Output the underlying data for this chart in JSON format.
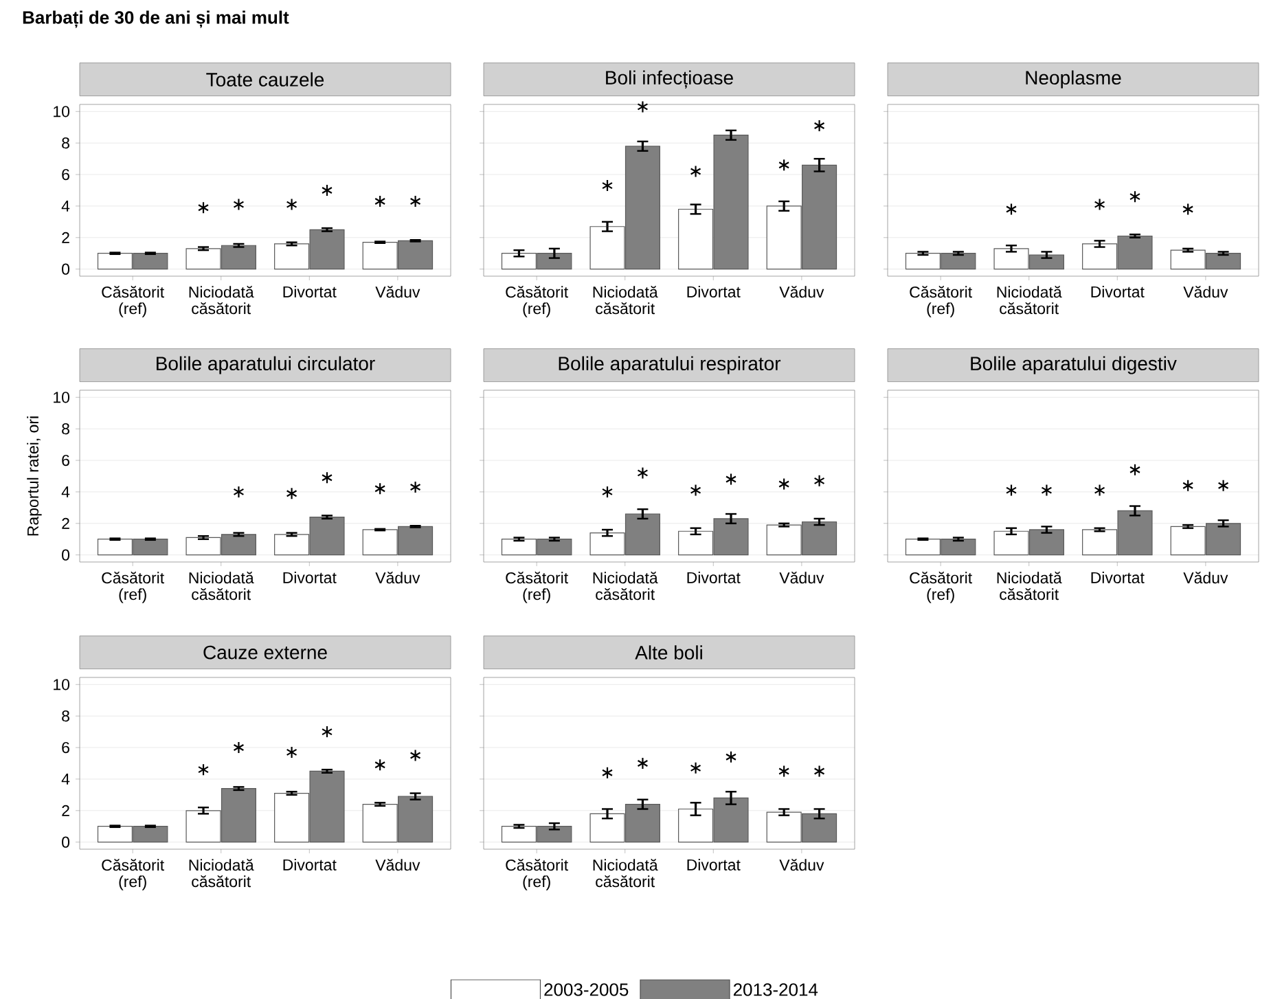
{
  "chart_data": [
    {
      "type": "bar",
      "title": "Toate cauzele",
      "annotations": [
        "Barbați de 30 de ani și mai mult"
      ],
      "categories": [
        "Căsătorit (ref)",
        "Niciodată căsătorit",
        "Divortat",
        "Văduv"
      ],
      "ylim": [
        -0.45,
        10.45
      ],
      "yticks": [
        0,
        2,
        4,
        6,
        8,
        10
      ],
      "grid": "y",
      "series": [
        {
          "color": "#ffffff",
          "values": [
            1.0,
            1.3,
            1.6,
            1.7
          ],
          "errors": [
            0.05,
            0.1,
            0.1,
            0.05
          ]
        },
        {
          "color": "#808080",
          "values": [
            1.0,
            1.5,
            2.5,
            1.8
          ],
          "errors": [
            0.05,
            0.1,
            0.1,
            0.05
          ]
        },
        {
          "type": "scatter",
          "marker": "cross",
          "color": "#000000",
          "values": [
            null,
            3.9,
            4.1,
            4.3
          ]
        },
        {
          "type": "scatter",
          "marker": "cross",
          "color": "#000000",
          "values": [
            null,
            4.1,
            5.0,
            4.3
          ]
        }
      ]
    },
    {
      "type": "bar",
      "title": "Boli infecțioase",
      "categories": [
        "Căsătorit (ref)",
        "Niciodată căsătorit",
        "Divortat",
        "Văduv"
      ],
      "ylim": [
        -0.45,
        10.45
      ],
      "yticks": [
        0,
        2,
        4,
        6,
        8,
        10
      ],
      "grid": "y",
      "tick_labels": "x",
      "series": [
        {
          "color": "#ffffff",
          "values": [
            1.0,
            2.7,
            3.8,
            4.0
          ],
          "errors": [
            0.2,
            0.3,
            0.3,
            0.3
          ]
        },
        {
          "color": "#808080",
          "values": [
            1.0,
            7.8,
            8.5,
            6.6
          ],
          "errors": [
            0.3,
            0.3,
            0.3,
            0.4
          ]
        },
        {
          "type": "scatter",
          "marker": "cross",
          "color": "#000000",
          "values": [
            null,
            5.3,
            6.2,
            6.6
          ]
        },
        {
          "type": "scatter",
          "marker": "cross",
          "color": "#000000",
          "values": [
            null,
            10.3,
            null,
            9.1
          ]
        }
      ]
    },
    {
      "type": "bar",
      "title": "Neoplasme",
      "categories": [
        "Căsătorit (ref)",
        "Niciodată căsătorit",
        "Divortat",
        "Văduv"
      ],
      "ylim": [
        -0.45,
        10.45
      ],
      "yticks": [
        0,
        2,
        4,
        6,
        8,
        10
      ],
      "grid": "y",
      "tick_labels": "x",
      "series": [
        {
          "color": "#ffffff",
          "values": [
            1.0,
            1.3,
            1.6,
            1.2
          ],
          "errors": [
            0.1,
            0.2,
            0.2,
            0.1
          ]
        },
        {
          "color": "#808080",
          "values": [
            1.0,
            0.9,
            2.1,
            1.0
          ],
          "errors": [
            0.1,
            0.2,
            0.1,
            0.1
          ]
        },
        {
          "type": "scatter",
          "marker": "cross",
          "color": "#000000",
          "values": [
            null,
            3.8,
            4.1,
            3.8
          ]
        },
        {
          "type": "scatter",
          "marker": "cross",
          "color": "#000000",
          "values": [
            null,
            null,
            4.6,
            null
          ]
        }
      ]
    },
    {
      "type": "bar",
      "title": "Bolile aparatului circulator",
      "ylabel": "Raportul ratei, ori",
      "categories": [
        "Căsătorit (ref)",
        "Niciodată căsătorit",
        "Divortat",
        "Văduv"
      ],
      "ylim": [
        -0.45,
        10.45
      ],
      "yticks": [
        0,
        2,
        4,
        6,
        8,
        10
      ],
      "grid": "y",
      "series": [
        {
          "color": "#ffffff",
          "values": [
            1.0,
            1.1,
            1.3,
            1.6
          ],
          "errors": [
            0.05,
            0.1,
            0.1,
            0.05
          ]
        },
        {
          "color": "#808080",
          "values": [
            1.0,
            1.3,
            2.4,
            1.8
          ],
          "errors": [
            0.05,
            0.1,
            0.1,
            0.05
          ]
        },
        {
          "type": "scatter",
          "marker": "cross",
          "color": "#000000",
          "values": [
            null,
            null,
            3.9,
            4.2
          ]
        },
        {
          "type": "scatter",
          "marker": "cross",
          "color": "#000000",
          "values": [
            null,
            4.0,
            4.9,
            4.3
          ]
        }
      ]
    },
    {
      "type": "bar",
      "title": "Bolile aparatului respirator",
      "categories": [
        "Căsătorit (ref)",
        "Niciodată căsătorit",
        "Divortat",
        "Văduv"
      ],
      "ylim": [
        -0.45,
        10.45
      ],
      "yticks": [
        0,
        2,
        4,
        6,
        8,
        10
      ],
      "grid": "y",
      "tick_labels": "x",
      "series": [
        {
          "color": "#ffffff",
          "values": [
            1.0,
            1.4,
            1.5,
            1.9
          ],
          "errors": [
            0.1,
            0.2,
            0.2,
            0.1
          ]
        },
        {
          "color": "#808080",
          "values": [
            1.0,
            2.6,
            2.3,
            2.1
          ],
          "errors": [
            0.1,
            0.3,
            0.3,
            0.2
          ]
        },
        {
          "type": "scatter",
          "marker": "cross",
          "color": "#000000",
          "values": [
            null,
            4.0,
            4.1,
            4.5
          ]
        },
        {
          "type": "scatter",
          "marker": "cross",
          "color": "#000000",
          "values": [
            null,
            5.2,
            4.8,
            4.7
          ]
        }
      ]
    },
    {
      "type": "bar",
      "title": "Bolile aparatului digestiv",
      "categories": [
        "Căsătorit (ref)",
        "Niciodată căsătorit",
        "Divortat",
        "Văduv"
      ],
      "ylim": [
        -0.45,
        10.45
      ],
      "yticks": [
        0,
        2,
        4,
        6,
        8,
        10
      ],
      "grid": "y",
      "tick_labels": "x",
      "series": [
        {
          "color": "#ffffff",
          "values": [
            1.0,
            1.5,
            1.6,
            1.8
          ],
          "errors": [
            0.05,
            0.2,
            0.1,
            0.1
          ]
        },
        {
          "color": "#808080",
          "values": [
            1.0,
            1.6,
            2.8,
            2.0
          ],
          "errors": [
            0.1,
            0.2,
            0.3,
            0.2
          ]
        },
        {
          "type": "scatter",
          "marker": "cross",
          "color": "#000000",
          "values": [
            null,
            4.1,
            4.1,
            4.4
          ]
        },
        {
          "type": "scatter",
          "marker": "cross",
          "color": "#000000",
          "values": [
            null,
            4.1,
            5.4,
            4.4
          ]
        }
      ]
    },
    {
      "type": "bar",
      "title": "Cauze externe",
      "categories": [
        "Căsătorit (ref)",
        "Niciodată căsătorit",
        "Divortat",
        "Văduv"
      ],
      "ylim": [
        -0.45,
        10.45
      ],
      "yticks": [
        0,
        2,
        4,
        6,
        8,
        10
      ],
      "grid": "y",
      "series": [
        {
          "color": "#ffffff",
          "values": [
            1.0,
            2.0,
            3.1,
            2.4
          ],
          "errors": [
            0.05,
            0.2,
            0.1,
            0.1
          ]
        },
        {
          "color": "#808080",
          "values": [
            1.0,
            3.4,
            4.5,
            2.9
          ],
          "errors": [
            0.05,
            0.1,
            0.1,
            0.2
          ]
        },
        {
          "type": "scatter",
          "marker": "cross",
          "color": "#000000",
          "values": [
            null,
            4.6,
            5.7,
            4.9
          ]
        },
        {
          "type": "scatter",
          "marker": "cross",
          "color": "#000000",
          "values": [
            null,
            6.0,
            7.0,
            5.5
          ]
        }
      ]
    },
    {
      "type": "bar",
      "title": "Alte boli",
      "categories": [
        "Căsătorit (ref)",
        "Niciodată căsătorit",
        "Divortat",
        "Văduv"
      ],
      "ylim": [
        -0.45,
        10.45
      ],
      "yticks": [
        0,
        2,
        4,
        6,
        8,
        10
      ],
      "grid": "y",
      "tick_labels": "x",
      "legend": "bottom",
      "series": [
        {
          "name": "2003-2005",
          "color": "#ffffff",
          "values": [
            1.0,
            1.8,
            2.1,
            1.9
          ],
          "errors": [
            0.1,
            0.3,
            0.4,
            0.2
          ]
        },
        {
          "name": "2013-2014",
          "color": "#808080",
          "values": [
            1.0,
            2.4,
            2.8,
            1.8
          ],
          "errors": [
            0.2,
            0.3,
            0.4,
            0.3
          ]
        },
        {
          "type": "scatter",
          "marker": "cross",
          "color": "#000000",
          "values": [
            null,
            4.4,
            4.7,
            4.5
          ]
        },
        {
          "type": "scatter",
          "marker": "cross",
          "color": "#000000",
          "values": [
            null,
            5.0,
            5.4,
            4.5
          ]
        }
      ]
    }
  ]
}
